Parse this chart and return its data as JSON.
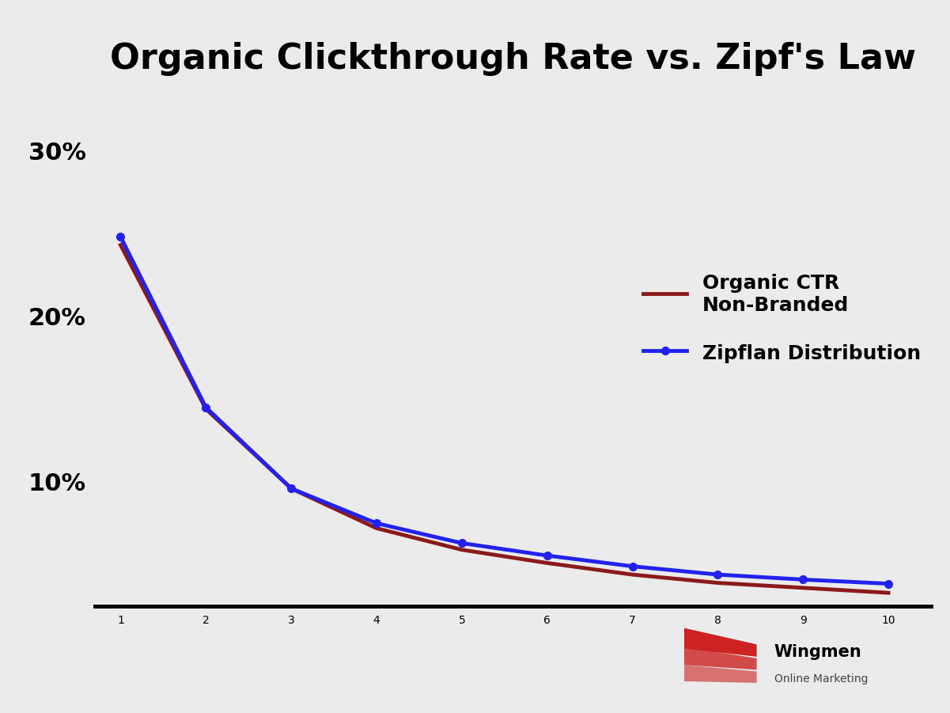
{
  "title": "Organic Clickthrough Rate vs. Zipf's Law",
  "title_fontsize": 32,
  "title_fontweight": "bold",
  "background_color": "#ebebeb",
  "x": [
    1,
    2,
    3,
    4,
    5,
    6,
    7,
    8,
    9,
    10
  ],
  "organic_ctr": [
    0.243,
    0.144,
    0.096,
    0.072,
    0.059,
    0.051,
    0.044,
    0.039,
    0.036,
    0.033
  ],
  "zipflan": [
    0.248,
    0.145,
    0.096,
    0.075,
    0.063,
    0.0555,
    0.049,
    0.044,
    0.041,
    0.0385
  ],
  "organic_color": "#8B1A1A",
  "zipflan_color": "#2222EE",
  "organic_linewidth": 3.5,
  "zipflan_linewidth": 3.5,
  "zipflan_marker": "o",
  "zipflan_markersize": 7,
  "legend_organic_label": "Organic CTR\nNon-Branded",
  "legend_zipflan_label": "Zipflan Distribution",
  "legend_fontsize": 18,
  "legend_fontweight": "bold",
  "yticks": [
    0.1,
    0.2,
    0.3
  ],
  "ytick_labels": [
    "10%",
    "20%",
    "30%"
  ],
  "xticks": [
    1,
    2,
    3,
    4,
    5,
    6,
    7,
    8,
    9,
    10
  ],
  "tick_fontsize": 22,
  "tick_fontweight": "bold",
  "ylim": [
    0.025,
    0.335
  ],
  "xlim": [
    0.7,
    10.5
  ],
  "spine_linewidth": 3.5,
  "logo_wingmen_text": "Wingmen",
  "logo_sub_text": "Online Marketing",
  "logo_wing_color": "#cc2222"
}
